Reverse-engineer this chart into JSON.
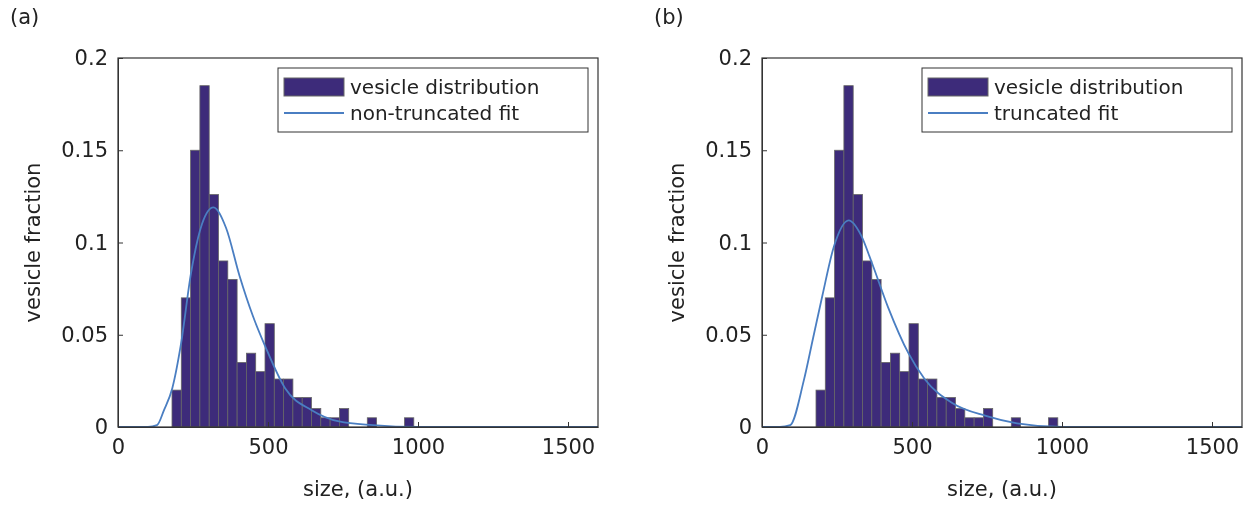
{
  "chart_data": [
    {
      "type": "histogram",
      "title": "(a)",
      "xlabel": "size, (a.u.)",
      "ylabel": "vesicle fraction",
      "xlim": [
        0,
        1600
      ],
      "xticks": [
        0,
        500,
        1000,
        1500
      ],
      "ylim": [
        0,
        0.2
      ],
      "yticks": [
        0,
        0.05,
        0.1,
        0.15,
        0.2
      ],
      "legend": "top right",
      "bins": [
        180,
        211,
        242,
        273,
        304,
        335,
        366,
        397,
        428,
        459,
        490,
        521,
        552,
        583,
        614,
        645,
        676,
        707,
        738,
        769,
        800,
        831,
        862,
        893,
        924,
        955,
        986
      ],
      "series": [
        {
          "name": "vesicle distribution",
          "color": "#3d2b7a",
          "values": [
            0.02,
            0.07,
            0.15,
            0.185,
            0.126,
            0.09,
            0.08,
            0.035,
            0.04,
            0.03,
            0.056,
            0.026,
            0.026,
            0.016,
            0.016,
            0.01,
            0.005,
            0.005,
            0.01,
            0,
            0,
            0.005,
            0,
            0,
            0,
            0.005
          ]
        },
        {
          "name": "non-truncated fit",
          "type": "line",
          "color": "#4a7ec2",
          "x": [
            0,
            100,
            130,
            153,
            181,
            210,
            243,
            280,
            318,
            360,
            405,
            450,
            490,
            557,
            647,
            737,
            850,
            1000,
            1600
          ],
          "values": [
            0,
            0,
            0.001,
            0.009,
            0.021,
            0.045,
            0.083,
            0.11,
            0.119,
            0.108,
            0.082,
            0.06,
            0.044,
            0.021,
            0.009,
            0.003,
            0.001,
            0,
            0
          ]
        }
      ]
    },
    {
      "type": "histogram",
      "title": "(b)",
      "xlabel": "size, (a.u.)",
      "ylabel": "vesicle fraction",
      "xlim": [
        0,
        1600
      ],
      "xticks": [
        0,
        500,
        1000,
        1500
      ],
      "ylim": [
        0,
        0.2
      ],
      "yticks": [
        0,
        0.05,
        0.1,
        0.15,
        0.2
      ],
      "legend": "top right",
      "bins": [
        180,
        211,
        242,
        273,
        304,
        335,
        366,
        397,
        428,
        459,
        490,
        521,
        552,
        583,
        614,
        645,
        676,
        707,
        738,
        769,
        800,
        831,
        862,
        893,
        924,
        955,
        986
      ],
      "series": [
        {
          "name": "vesicle distribution",
          "color": "#3d2b7a",
          "values": [
            0.02,
            0.07,
            0.15,
            0.185,
            0.126,
            0.09,
            0.08,
            0.035,
            0.04,
            0.03,
            0.056,
            0.026,
            0.026,
            0.016,
            0.016,
            0.01,
            0.005,
            0.005,
            0.01,
            0,
            0,
            0.005,
            0,
            0,
            0,
            0.005
          ]
        },
        {
          "name": "truncated fit",
          "type": "line",
          "color": "#4a7ec2",
          "x": [
            0,
            60,
            94,
            139,
            170,
            201,
            240,
            289,
            330,
            364,
            420,
            488,
            542,
            634,
            746,
            850,
            1000,
            1600
          ],
          "values": [
            0,
            0,
            0.001,
            0.025,
            0.048,
            0.071,
            0.098,
            0.112,
            0.104,
            0.09,
            0.065,
            0.04,
            0.026,
            0.013,
            0.006,
            0.002,
            0,
            0
          ]
        }
      ]
    }
  ]
}
